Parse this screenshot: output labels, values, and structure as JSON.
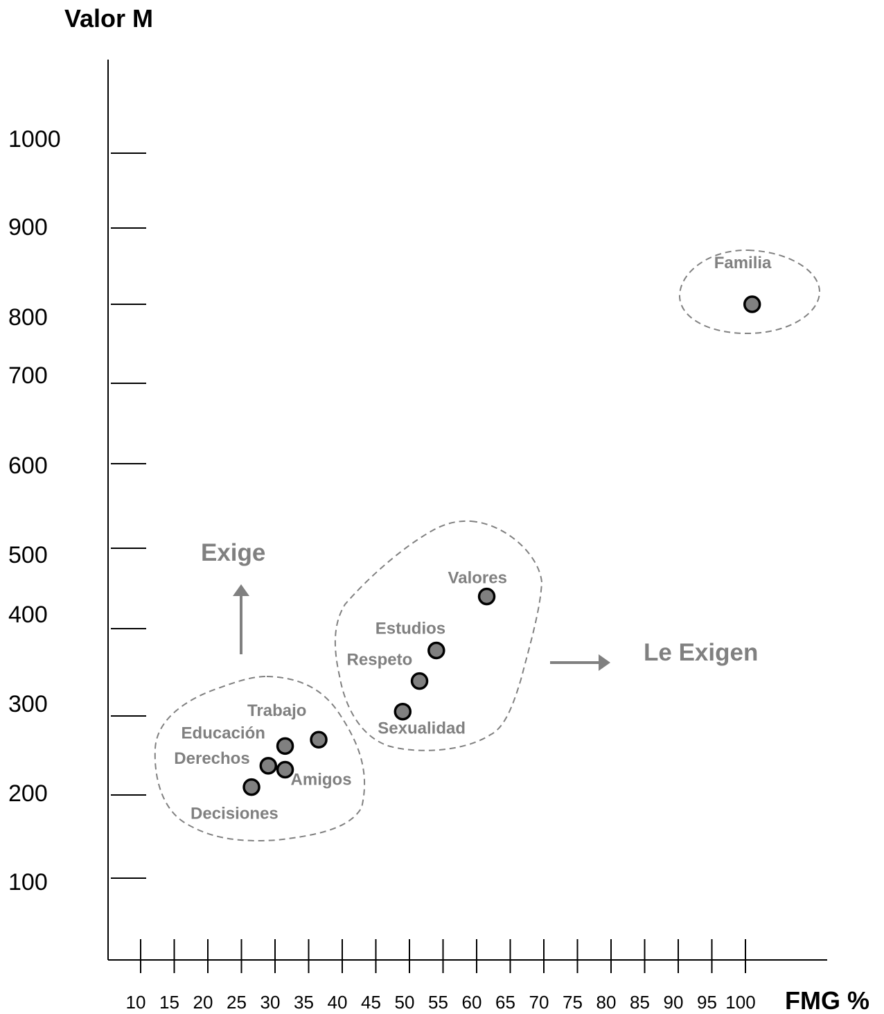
{
  "chart_data": {
    "type": "scatter",
    "ylabel": "Valor M",
    "xlabel": "FMG %",
    "y_ticks": [
      1000,
      900,
      800,
      700,
      600,
      500,
      400,
      300,
      200,
      100
    ],
    "x_ticks": [
      10,
      15,
      20,
      25,
      30,
      35,
      40,
      45,
      50,
      55,
      60,
      65,
      70,
      75,
      80,
      85,
      90,
      95,
      100
    ],
    "points": [
      {
        "label": "Familia",
        "x": 101,
        "y": 800
      },
      {
        "label": "Valores",
        "x": 61.5,
        "y": 440
      },
      {
        "label": "Estudios",
        "x": 54,
        "y": 375
      },
      {
        "label": "Respeto",
        "x": 51.5,
        "y": 340
      },
      {
        "label": "Sexualidad",
        "x": 49,
        "y": 305
      },
      {
        "label": "Trabajo",
        "x": 36.5,
        "y": 270
      },
      {
        "label": "Educación",
        "x": 31.5,
        "y": 262
      },
      {
        "label": "Derechos",
        "x": 29,
        "y": 237
      },
      {
        "label": "Amigos",
        "x": 31.5,
        "y": 232
      },
      {
        "label": "Decisiones",
        "x": 26.5,
        "y": 210
      }
    ],
    "annotations": [
      "Exige",
      "Le Exigen"
    ],
    "grid": false,
    "legend": "none"
  }
}
